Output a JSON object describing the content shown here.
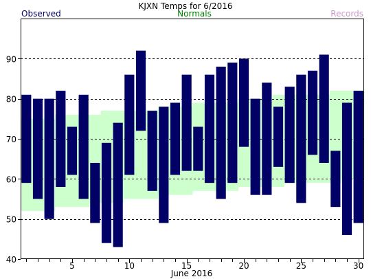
{
  "chart_data": {
    "type": "bar",
    "title": "KJXN Temps for 6/2016",
    "legend": {
      "observed": "Observed",
      "normals": "Normals",
      "records": "Records"
    },
    "colors": {
      "observed": "#000066",
      "normals": "#ccffcc",
      "records": "#cc99cc",
      "normals_text": "#008000",
      "grid": "#000000"
    },
    "xlabel": "June 2016",
    "x_ticks": [
      "5",
      "10",
      "15",
      "20",
      "25",
      "30"
    ],
    "x_tick_days": [
      5,
      10,
      15,
      20,
      25,
      30
    ],
    "y_ticks": [
      "40",
      "50",
      "60",
      "70",
      "80",
      "90"
    ],
    "y_tick_values": [
      40,
      50,
      60,
      70,
      80,
      90
    ],
    "ylim": [
      40,
      100
    ],
    "xlim": [
      0.5,
      30.5
    ],
    "grid": "horizontal dashed at 50, 60, 70, 80, 90",
    "days": [
      1,
      2,
      3,
      4,
      5,
      6,
      7,
      8,
      9,
      10,
      11,
      12,
      13,
      14,
      15,
      16,
      17,
      18,
      19,
      20,
      21,
      22,
      23,
      24,
      25,
      26,
      27,
      28,
      29,
      30
    ],
    "observed_high": [
      81,
      80,
      80,
      82,
      73,
      81,
      64,
      69,
      74,
      86,
      92,
      77,
      78,
      79,
      86,
      73,
      86,
      88,
      89,
      90,
      80,
      84,
      78,
      83,
      86,
      87,
      91,
      67,
      79,
      82
    ],
    "observed_low": [
      59,
      55,
      50,
      58,
      61,
      55,
      49,
      44,
      43,
      61,
      72,
      57,
      49,
      61,
      62,
      62,
      59,
      55,
      59,
      68,
      56,
      56,
      63,
      59,
      54,
      66,
      64,
      53,
      46,
      49
    ],
    "normal_high": [
      75,
      75,
      75,
      76,
      76,
      76,
      76,
      77,
      77,
      77,
      77,
      77,
      78,
      78,
      78,
      79,
      79,
      79,
      79,
      80,
      80,
      80,
      81,
      81,
      81,
      81,
      81,
      82,
      82,
      82
    ],
    "normal_low": [
      52,
      52,
      52,
      53,
      53,
      53,
      54,
      54,
      54,
      55,
      55,
      55,
      56,
      56,
      56,
      57,
      57,
      57,
      57,
      58,
      58,
      58,
      58,
      59,
      59,
      59,
      59,
      59,
      60,
      60
    ]
  }
}
